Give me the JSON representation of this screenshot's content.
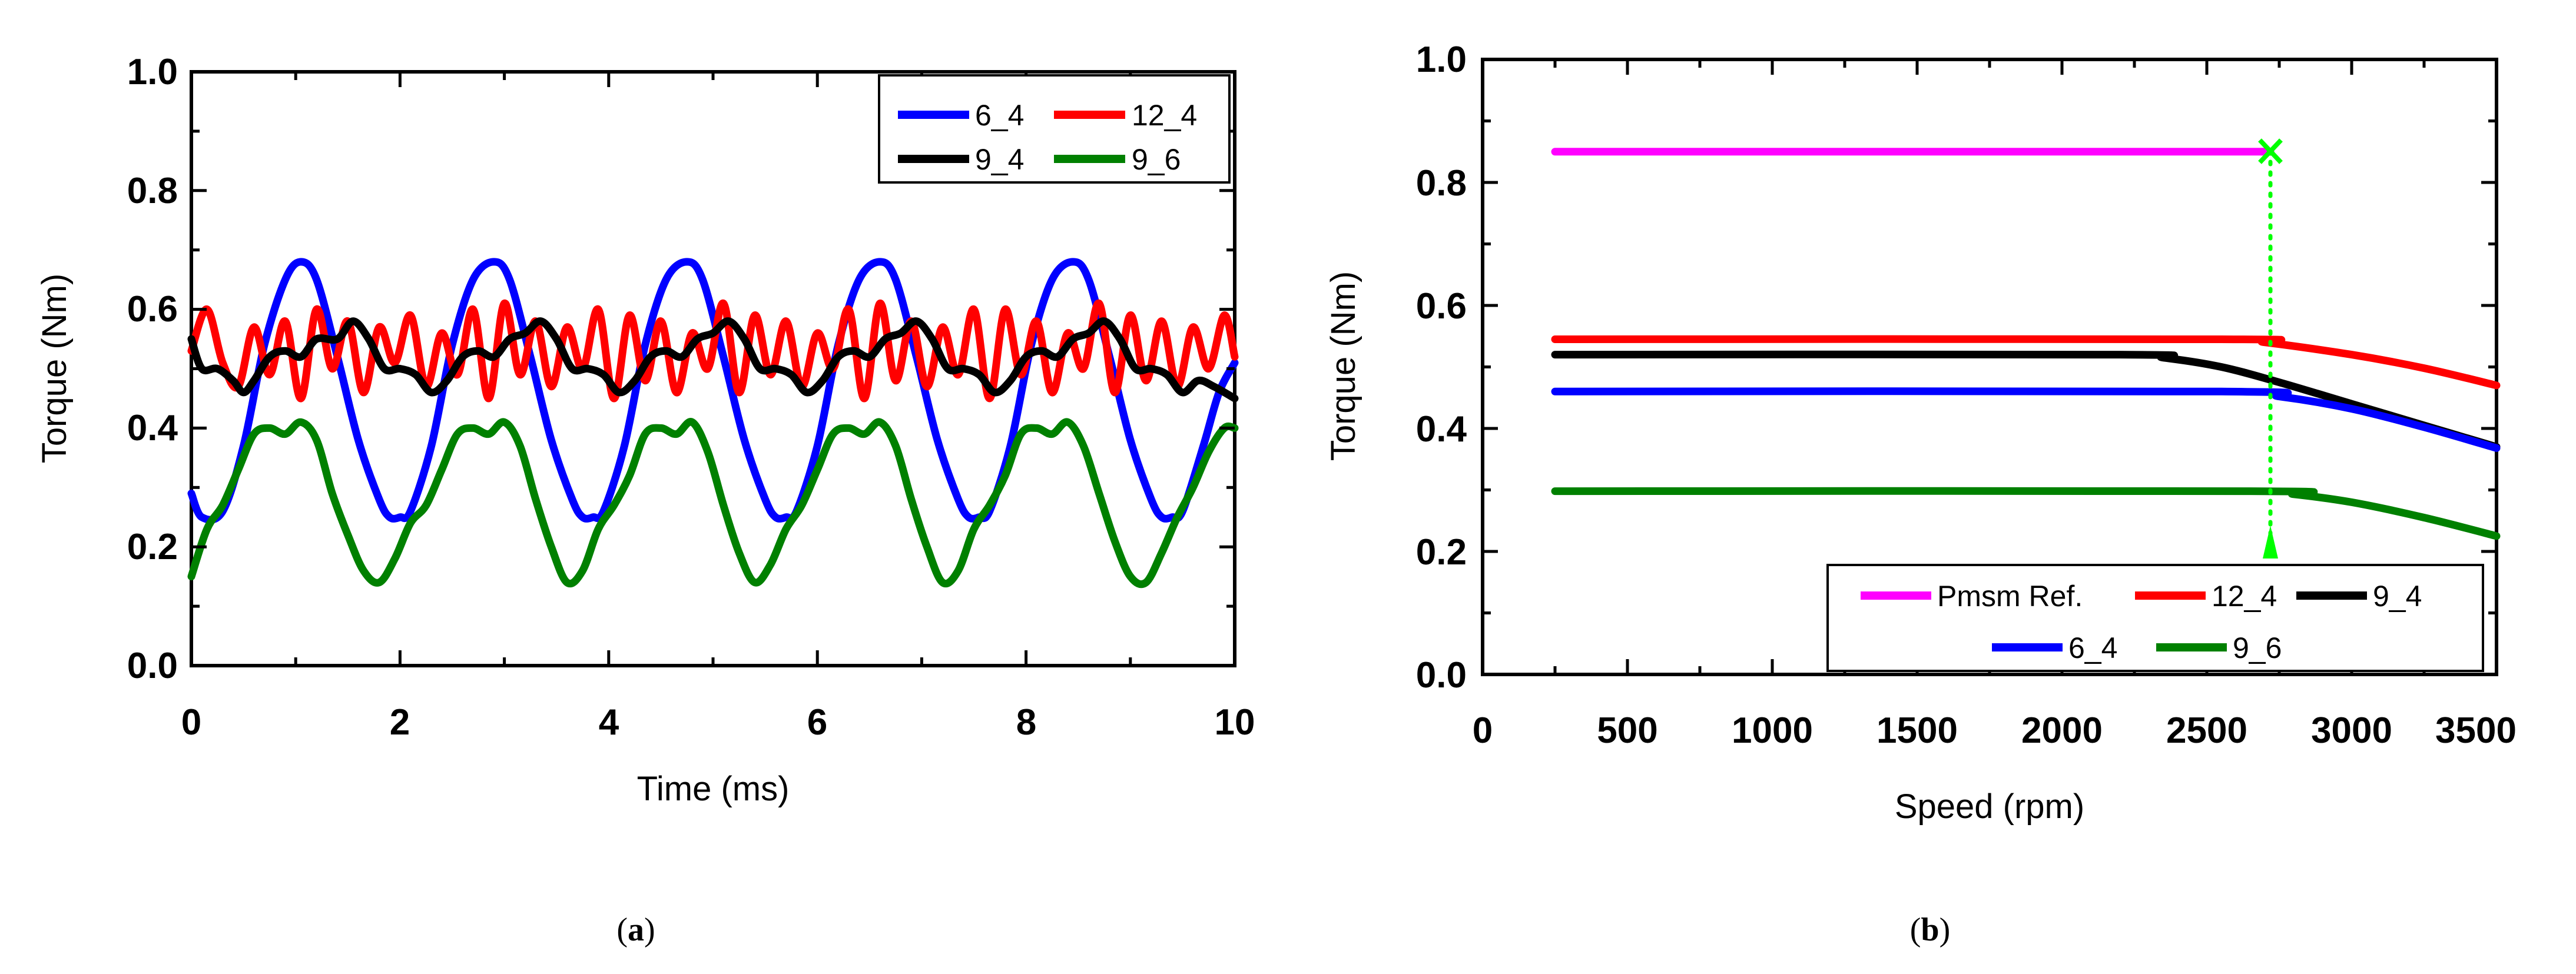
{
  "chart_data": [
    {
      "id": "a",
      "type": "line",
      "caption": "a",
      "xlabel": "Time (ms)",
      "ylabel": "Torque (Nm)",
      "xlim": [
        0,
        10
      ],
      "ylim": [
        0,
        1
      ],
      "xticks": [
        "0",
        "2",
        "4",
        "6",
        "8",
        "10"
      ],
      "yticks": [
        "0.0",
        "0.2",
        "0.4",
        "0.6",
        "0.8",
        "1.0"
      ],
      "legend_position": "top-right",
      "legend": [
        "6_4",
        "12_4",
        "9_4",
        "9_6"
      ],
      "series": [
        {
          "name": "6_4",
          "color": "#0000ff",
          "period": 1.85,
          "shape": "spike",
          "description": "sharp peaks 0.68 near 1.05, 2.9, 4.75, 6.6, 8.45 ms; troughs 0.25",
          "x": [
            0,
            0.1,
            0.3,
            0.5,
            0.7,
            0.9,
            1.05,
            1.2,
            1.4,
            1.6,
            1.8,
            1.9,
            2.0,
            2.1,
            2.3,
            2.5,
            2.7,
            2.9,
            3.05,
            3.25,
            3.45,
            3.65,
            3.75,
            3.85,
            3.95,
            4.15,
            4.35,
            4.55,
            4.75,
            4.9,
            5.1,
            5.3,
            5.5,
            5.6,
            5.7,
            5.8,
            6.0,
            6.2,
            6.4,
            6.6,
            6.75,
            6.95,
            7.15,
            7.35,
            7.45,
            7.55,
            7.65,
            7.85,
            8.05,
            8.25,
            8.45,
            8.6,
            8.8,
            9.0,
            9.2,
            9.3,
            9.4,
            9.5,
            9.7,
            9.85,
            10
          ],
          "y": [
            0.29,
            0.25,
            0.26,
            0.37,
            0.54,
            0.65,
            0.68,
            0.65,
            0.52,
            0.38,
            0.28,
            0.25,
            0.25,
            0.26,
            0.37,
            0.54,
            0.65,
            0.68,
            0.65,
            0.52,
            0.38,
            0.28,
            0.25,
            0.25,
            0.26,
            0.37,
            0.54,
            0.65,
            0.68,
            0.65,
            0.52,
            0.38,
            0.28,
            0.25,
            0.25,
            0.26,
            0.37,
            0.54,
            0.65,
            0.68,
            0.65,
            0.52,
            0.38,
            0.28,
            0.25,
            0.25,
            0.26,
            0.37,
            0.54,
            0.65,
            0.68,
            0.65,
            0.52,
            0.38,
            0.28,
            0.25,
            0.25,
            0.26,
            0.37,
            0.46,
            0.51
          ]
        },
        {
          "name": "12_4",
          "color": "#ff0000",
          "description": "fast oscillation between about 0.44 and 0.62",
          "x": [
            0,
            0.15,
            0.3,
            0.45,
            0.6,
            0.75,
            0.9,
            1.05,
            1.2,
            1.35,
            1.5,
            1.65,
            1.8,
            1.95,
            2.1,
            2.25,
            2.4,
            2.55,
            2.7,
            2.85,
            3.0,
            3.15,
            3.3,
            3.45,
            3.6,
            3.75,
            3.9,
            4.05,
            4.2,
            4.35,
            4.5,
            4.65,
            4.8,
            4.95,
            5.1,
            5.25,
            5.4,
            5.55,
            5.7,
            5.85,
            6.0,
            6.15,
            6.3,
            6.45,
            6.6,
            6.75,
            6.9,
            7.05,
            7.2,
            7.35,
            7.5,
            7.65,
            7.8,
            7.95,
            8.1,
            8.25,
            8.4,
            8.55,
            8.7,
            8.85,
            9.0,
            9.15,
            9.3,
            9.45,
            9.6,
            9.75,
            9.9,
            10
          ],
          "y": [
            0.53,
            0.6,
            0.51,
            0.47,
            0.57,
            0.49,
            0.58,
            0.45,
            0.6,
            0.5,
            0.58,
            0.46,
            0.57,
            0.51,
            0.59,
            0.47,
            0.56,
            0.49,
            0.6,
            0.45,
            0.61,
            0.49,
            0.58,
            0.47,
            0.57,
            0.5,
            0.6,
            0.45,
            0.59,
            0.48,
            0.58,
            0.46,
            0.56,
            0.5,
            0.61,
            0.46,
            0.59,
            0.49,
            0.58,
            0.47,
            0.56,
            0.5,
            0.6,
            0.45,
            0.61,
            0.48,
            0.58,
            0.47,
            0.57,
            0.49,
            0.6,
            0.45,
            0.6,
            0.49,
            0.58,
            0.46,
            0.56,
            0.5,
            0.61,
            0.46,
            0.59,
            0.48,
            0.58,
            0.47,
            0.57,
            0.5,
            0.59,
            0.52
          ]
        },
        {
          "name": "9_4",
          "color": "#000000",
          "description": "oscillates between about 0.45 and 0.58",
          "x": [
            0,
            0.1,
            0.25,
            0.4,
            0.5,
            0.6,
            0.75,
            0.9,
            1.05,
            1.2,
            1.4,
            1.55,
            1.7,
            1.85,
            2.0,
            2.15,
            2.3,
            2.45,
            2.6,
            2.75,
            2.9,
            3.05,
            3.2,
            3.35,
            3.5,
            3.65,
            3.8,
            3.95,
            4.1,
            4.25,
            4.4,
            4.55,
            4.7,
            4.85,
            5.0,
            5.15,
            5.3,
            5.45,
            5.6,
            5.75,
            5.9,
            6.05,
            6.2,
            6.35,
            6.5,
            6.65,
            6.8,
            6.95,
            7.1,
            7.25,
            7.4,
            7.55,
            7.7,
            7.85,
            8.0,
            8.15,
            8.3,
            8.45,
            8.6,
            8.75,
            8.9,
            9.05,
            9.2,
            9.35,
            9.5,
            9.65,
            9.8,
            10
          ],
          "y": [
            0.55,
            0.5,
            0.5,
            0.48,
            0.46,
            0.48,
            0.52,
            0.53,
            0.52,
            0.55,
            0.55,
            0.58,
            0.55,
            0.5,
            0.5,
            0.49,
            0.46,
            0.48,
            0.52,
            0.53,
            0.52,
            0.55,
            0.56,
            0.58,
            0.55,
            0.5,
            0.5,
            0.49,
            0.46,
            0.48,
            0.52,
            0.53,
            0.52,
            0.55,
            0.56,
            0.58,
            0.55,
            0.5,
            0.5,
            0.49,
            0.46,
            0.48,
            0.52,
            0.53,
            0.52,
            0.55,
            0.56,
            0.58,
            0.55,
            0.5,
            0.5,
            0.49,
            0.46,
            0.48,
            0.52,
            0.53,
            0.52,
            0.55,
            0.56,
            0.58,
            0.55,
            0.5,
            0.5,
            0.49,
            0.46,
            0.48,
            0.47,
            0.45
          ]
        },
        {
          "name": "9_6",
          "color": "#008000",
          "description": "oscillates between about 0.14 and 0.41",
          "x": [
            0,
            0.15,
            0.3,
            0.45,
            0.6,
            0.75,
            0.9,
            1.05,
            1.2,
            1.35,
            1.5,
            1.65,
            1.8,
            1.95,
            2.1,
            2.25,
            2.4,
            2.55,
            2.7,
            2.85,
            3.0,
            3.15,
            3.3,
            3.45,
            3.6,
            3.75,
            3.9,
            4.05,
            4.2,
            4.35,
            4.5,
            4.65,
            4.8,
            4.95,
            5.1,
            5.25,
            5.4,
            5.55,
            5.7,
            5.85,
            6.0,
            6.15,
            6.3,
            6.45,
            6.6,
            6.75,
            6.9,
            7.05,
            7.2,
            7.35,
            7.5,
            7.65,
            7.8,
            7.95,
            8.1,
            8.25,
            8.4,
            8.55,
            8.7,
            8.85,
            9.0,
            9.15,
            9.3,
            9.45,
            9.6,
            9.75,
            9.9,
            10
          ],
          "y": [
            0.15,
            0.23,
            0.27,
            0.33,
            0.39,
            0.4,
            0.39,
            0.41,
            0.38,
            0.29,
            0.22,
            0.16,
            0.14,
            0.18,
            0.24,
            0.27,
            0.33,
            0.39,
            0.4,
            0.39,
            0.41,
            0.37,
            0.28,
            0.2,
            0.14,
            0.16,
            0.23,
            0.27,
            0.32,
            0.39,
            0.4,
            0.39,
            0.41,
            0.36,
            0.27,
            0.19,
            0.14,
            0.17,
            0.23,
            0.27,
            0.33,
            0.39,
            0.4,
            0.39,
            0.41,
            0.37,
            0.28,
            0.2,
            0.14,
            0.16,
            0.23,
            0.27,
            0.32,
            0.39,
            0.4,
            0.39,
            0.41,
            0.37,
            0.29,
            0.21,
            0.15,
            0.14,
            0.19,
            0.25,
            0.3,
            0.36,
            0.4,
            0.4
          ]
        }
      ]
    },
    {
      "id": "b",
      "type": "line",
      "caption": "b",
      "xlabel": "Speed (rpm)",
      "ylabel": "Torque (Nm)",
      "xlim": [
        0,
        3500
      ],
      "ylim": [
        0,
        1
      ],
      "xticks": [
        "0",
        "500",
        "1000",
        "1500",
        "2000",
        "2500",
        "3000",
        "3500"
      ],
      "yticks": [
        "0.0",
        "0.2",
        "0.4",
        "0.6",
        "0.8",
        "1.0"
      ],
      "legend_position": "bottom-right",
      "legend": [
        "Pmsm Ref.",
        "12_4",
        "9_4",
        "6_4",
        "9_6"
      ],
      "series": [
        {
          "name": "Pmsm Ref.",
          "color": "#ff00ff",
          "x": [
            250,
            2720
          ],
          "y": [
            0.85,
            0.85
          ]
        },
        {
          "name": "12_4",
          "color": "#ff0000",
          "x": [
            250,
            2550,
            2700,
            3000,
            3250,
            3500
          ],
          "y": [
            0.545,
            0.545,
            0.54,
            0.52,
            0.498,
            0.47
          ]
        },
        {
          "name": "9_4",
          "color": "#000000",
          "x": [
            250,
            2200,
            2350,
            2550,
            2750,
            3000,
            3250,
            3500
          ],
          "y": [
            0.52,
            0.52,
            0.515,
            0.5,
            0.475,
            0.44,
            0.405,
            0.37
          ]
        },
        {
          "name": "6_4",
          "color": "#0000ff",
          "x": [
            250,
            2550,
            2750,
            3000,
            3250,
            3500
          ],
          "y": [
            0.46,
            0.46,
            0.452,
            0.432,
            0.402,
            0.368
          ]
        },
        {
          "name": "9_6",
          "color": "#008000",
          "x": [
            250,
            2650,
            2800,
            3000,
            3250,
            3500
          ],
          "y": [
            0.298,
            0.298,
            0.293,
            0.28,
            0.255,
            0.225
          ]
        }
      ],
      "annotation": {
        "type": "dotted-arrow",
        "color": "#00ff00",
        "x": 2720,
        "y_from": 0.85,
        "y_to": 0.2
      }
    }
  ]
}
